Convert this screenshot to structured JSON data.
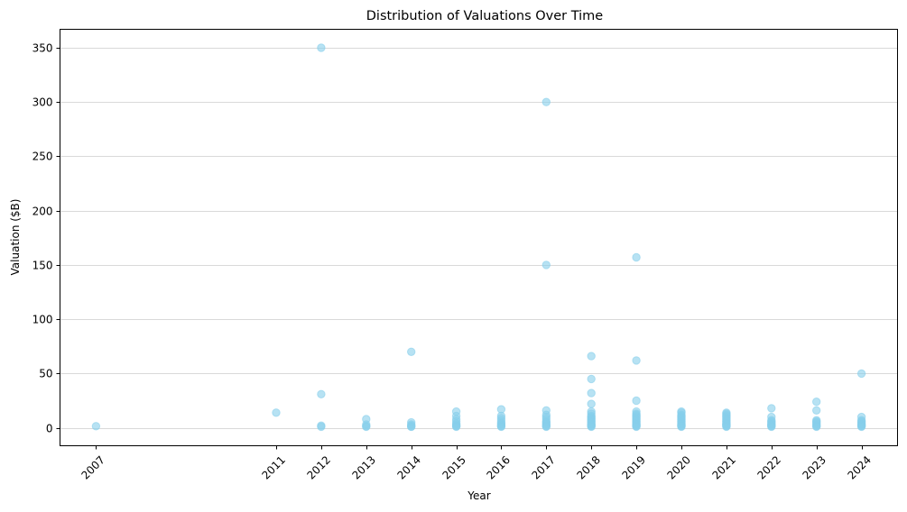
{
  "chart_data": {
    "type": "scatter",
    "title": "Distribution of Valuations Over Time",
    "xlabel": "Year",
    "ylabel": "Valuation ($B)",
    "xlim": [
      2006.2,
      2024.8
    ],
    "ylim": [
      -16.5,
      367
    ],
    "xticks": [
      2007,
      2011,
      2012,
      2013,
      2014,
      2015,
      2016,
      2017,
      2018,
      2019,
      2020,
      2021,
      2022,
      2023,
      2024
    ],
    "xtick_rotation": 45,
    "yticks": [
      0,
      50,
      100,
      150,
      200,
      250,
      300,
      350
    ],
    "grid": "horizontal",
    "legend": "none",
    "color": "#87ceeb",
    "series": [
      {
        "points": [
          [
            2007,
            1.5
          ],
          [
            2011,
            14
          ],
          [
            2012,
            350
          ],
          [
            2012,
            31
          ],
          [
            2012,
            2
          ],
          [
            2012,
            1
          ],
          [
            2013,
            8
          ],
          [
            2013,
            3
          ],
          [
            2013,
            1.5
          ],
          [
            2013,
            1
          ],
          [
            2014,
            70
          ],
          [
            2014,
            5
          ],
          [
            2014,
            3
          ],
          [
            2014,
            2
          ],
          [
            2014,
            1
          ],
          [
            2014,
            1.2
          ],
          [
            2015,
            15
          ],
          [
            2015,
            11
          ],
          [
            2015,
            8
          ],
          [
            2015,
            6
          ],
          [
            2015,
            4
          ],
          [
            2015,
            3
          ],
          [
            2015,
            2
          ],
          [
            2015,
            1.5
          ],
          [
            2015,
            1
          ],
          [
            2016,
            17
          ],
          [
            2016,
            11
          ],
          [
            2016,
            9
          ],
          [
            2016,
            7
          ],
          [
            2016,
            5
          ],
          [
            2016,
            4
          ],
          [
            2016,
            3
          ],
          [
            2016,
            2
          ],
          [
            2016,
            1.5
          ],
          [
            2016,
            1
          ],
          [
            2017,
            300
          ],
          [
            2017,
            150
          ],
          [
            2017,
            16
          ],
          [
            2017,
            12
          ],
          [
            2017,
            10
          ],
          [
            2017,
            8
          ],
          [
            2017,
            6
          ],
          [
            2017,
            5
          ],
          [
            2017,
            4
          ],
          [
            2017,
            3
          ],
          [
            2017,
            2
          ],
          [
            2017,
            1.5
          ],
          [
            2017,
            1
          ],
          [
            2018,
            66
          ],
          [
            2018,
            45
          ],
          [
            2018,
            32
          ],
          [
            2018,
            22
          ],
          [
            2018,
            15
          ],
          [
            2018,
            13
          ],
          [
            2018,
            11
          ],
          [
            2018,
            10
          ],
          [
            2018,
            9
          ],
          [
            2018,
            8
          ],
          [
            2018,
            7
          ],
          [
            2018,
            6
          ],
          [
            2018,
            5
          ],
          [
            2018,
            4
          ],
          [
            2018,
            3
          ],
          [
            2018,
            2.5
          ],
          [
            2018,
            2
          ],
          [
            2018,
            1.5
          ],
          [
            2018,
            1
          ],
          [
            2019,
            157
          ],
          [
            2019,
            62
          ],
          [
            2019,
            25
          ],
          [
            2019,
            15
          ],
          [
            2019,
            13
          ],
          [
            2019,
            12
          ],
          [
            2019,
            11
          ],
          [
            2019,
            10
          ],
          [
            2019,
            9
          ],
          [
            2019,
            8
          ],
          [
            2019,
            7
          ],
          [
            2019,
            6
          ],
          [
            2019,
            5
          ],
          [
            2019,
            4
          ],
          [
            2019,
            3
          ],
          [
            2019,
            2.5
          ],
          [
            2019,
            2
          ],
          [
            2019,
            1.5
          ],
          [
            2019,
            1
          ],
          [
            2020,
            15
          ],
          [
            2020,
            14
          ],
          [
            2020,
            12
          ],
          [
            2020,
            11
          ],
          [
            2020,
            10
          ],
          [
            2020,
            9
          ],
          [
            2020,
            8
          ],
          [
            2020,
            7
          ],
          [
            2020,
            6
          ],
          [
            2020,
            5
          ],
          [
            2020,
            4
          ],
          [
            2020,
            3
          ],
          [
            2020,
            2.5
          ],
          [
            2020,
            2
          ],
          [
            2020,
            1.5
          ],
          [
            2020,
            1
          ],
          [
            2021,
            14
          ],
          [
            2021,
            13
          ],
          [
            2021,
            12
          ],
          [
            2021,
            11
          ],
          [
            2021,
            10
          ],
          [
            2021,
            9
          ],
          [
            2021,
            8
          ],
          [
            2021,
            7
          ],
          [
            2021,
            6
          ],
          [
            2021,
            5
          ],
          [
            2021,
            4
          ],
          [
            2021,
            3.5
          ],
          [
            2021,
            3
          ],
          [
            2021,
            2.5
          ],
          [
            2021,
            2
          ],
          [
            2021,
            1.5
          ],
          [
            2021,
            1
          ],
          [
            2022,
            18
          ],
          [
            2022,
            10
          ],
          [
            2022,
            7
          ],
          [
            2022,
            6
          ],
          [
            2022,
            5
          ],
          [
            2022,
            4
          ],
          [
            2022,
            3
          ],
          [
            2022,
            2.5
          ],
          [
            2022,
            2
          ],
          [
            2022,
            1.5
          ],
          [
            2022,
            1
          ],
          [
            2023,
            24
          ],
          [
            2023,
            16
          ],
          [
            2023,
            7
          ],
          [
            2023,
            6
          ],
          [
            2023,
            5
          ],
          [
            2023,
            4
          ],
          [
            2023,
            3
          ],
          [
            2023,
            2
          ],
          [
            2023,
            1.5
          ],
          [
            2023,
            1
          ],
          [
            2024,
            50
          ],
          [
            2024,
            10
          ],
          [
            2024,
            7
          ],
          [
            2024,
            6
          ],
          [
            2024,
            5
          ],
          [
            2024,
            4
          ],
          [
            2024,
            3
          ],
          [
            2024,
            2.5
          ],
          [
            2024,
            2
          ],
          [
            2024,
            1.5
          ],
          [
            2024,
            1
          ]
        ]
      }
    ]
  }
}
